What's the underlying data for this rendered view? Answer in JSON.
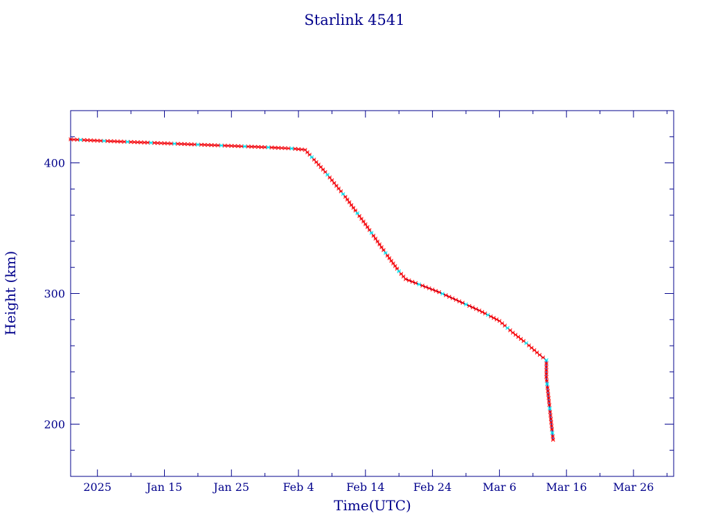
{
  "chart_data": {
    "type": "line",
    "title": "Starlink 4541",
    "xlabel": "Time(UTC)",
    "ylabel": "Height (km)",
    "xlim": [
      "2025-01-01",
      "2025-04-01"
    ],
    "ylim": [
      160,
      440
    ],
    "x_tick_labels": [
      {
        "date": "2025-01-05",
        "label": "2025"
      },
      {
        "date": "2025-01-15",
        "label": "Jan 15"
      },
      {
        "date": "2025-01-25",
        "label": "Jan 25"
      },
      {
        "date": "2025-02-04",
        "label": "Feb  4"
      },
      {
        "date": "2025-02-14",
        "label": "Feb 14"
      },
      {
        "date": "2025-02-24",
        "label": "Feb 24"
      },
      {
        "date": "2025-03-06",
        "label": "Mar  6"
      },
      {
        "date": "2025-03-16",
        "label": "Mar 16"
      },
      {
        "date": "2025-03-26",
        "label": "Mar 26"
      }
    ],
    "y_ticks": [
      200,
      300,
      400
    ],
    "y_tick_labels": [
      "200",
      "300",
      "400"
    ],
    "grid": false,
    "series": [
      {
        "color": "#00008b",
        "marker_colors": [
          "#ff0000",
          "#00e5ee"
        ],
        "points": [
          {
            "x": "2025-01-01",
            "y": 418
          },
          {
            "x": "2025-01-05",
            "y": 417
          },
          {
            "x": "2025-01-10",
            "y": 416
          },
          {
            "x": "2025-01-15",
            "y": 415
          },
          {
            "x": "2025-01-20",
            "y": 414
          },
          {
            "x": "2025-01-25",
            "y": 413
          },
          {
            "x": "2025-01-30",
            "y": 412
          },
          {
            "x": "2025-02-03",
            "y": 411
          },
          {
            "x": "2025-02-05",
            "y": 410
          },
          {
            "x": "2025-02-08",
            "y": 393
          },
          {
            "x": "2025-02-11",
            "y": 374
          },
          {
            "x": "2025-02-14",
            "y": 353
          },
          {
            "x": "2025-02-17",
            "y": 331
          },
          {
            "x": "2025-02-19",
            "y": 317
          },
          {
            "x": "2025-02-20",
            "y": 311
          },
          {
            "x": "2025-02-22",
            "y": 307
          },
          {
            "x": "2025-02-25",
            "y": 301
          },
          {
            "x": "2025-02-28",
            "y": 294
          },
          {
            "x": "2025-03-03",
            "y": 287
          },
          {
            "x": "2025-03-06",
            "y": 279
          },
          {
            "x": "2025-03-08",
            "y": 270
          },
          {
            "x": "2025-03-10",
            "y": 262
          },
          {
            "x": "2025-03-12",
            "y": 253
          },
          {
            "x": "2025-03-13",
            "y": 249
          },
          {
            "x": "2025-03-13",
            "y": 236
          },
          {
            "x": "2025-03-14",
            "y": 188
          }
        ]
      }
    ]
  }
}
